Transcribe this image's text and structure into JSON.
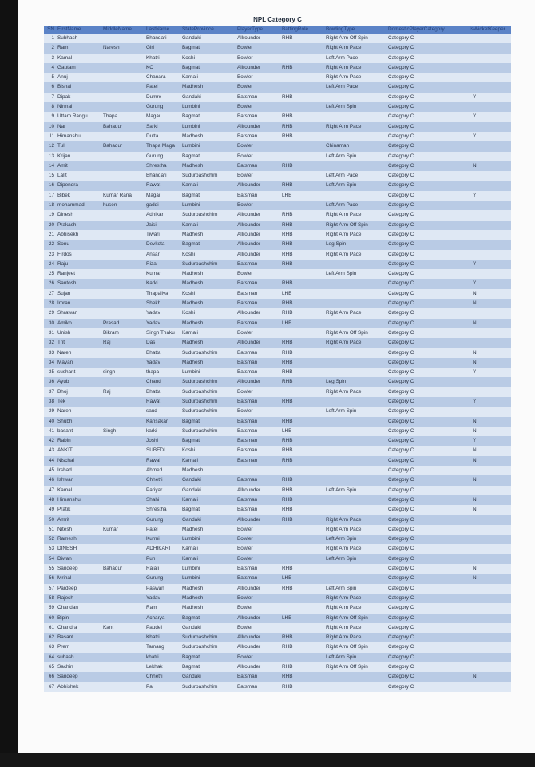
{
  "title": "NPL Category C",
  "table": {
    "headers": [
      "SN",
      "FirstName",
      "MiddleName",
      "LastName",
      "StateProvince",
      "PlayerType",
      "BattingRole",
      "BowlingType",
      "DomesticPlayerCategory",
      "IsWicketKeeper"
    ],
    "rows": [
      [
        "1",
        "Subhash",
        "",
        "Bhandari",
        "Gandaki",
        "Allrounder",
        "RHB",
        "Right Arm Off Spin",
        "Category C",
        ""
      ],
      [
        "2",
        "Ram",
        "Naresh",
        "Giri",
        "Bagmati",
        "Bowler",
        "",
        "Right Arm Pace",
        "Category C",
        ""
      ],
      [
        "3",
        "Kamal",
        "",
        "Khatri",
        "Koshi",
        "Bowler",
        "",
        "Left Arm Pace",
        "Category C",
        ""
      ],
      [
        "4",
        "Gautam",
        "",
        "KC",
        "Bagmati",
        "Allrounder",
        "RHB",
        "Right Arm Pace",
        "Category C",
        ""
      ],
      [
        "5",
        "Anuj",
        "",
        "Chanara",
        "Karnali",
        "Bowler",
        "",
        "Right Arm Pace",
        "Category C",
        ""
      ],
      [
        "6",
        "Bishal",
        "",
        "Patel",
        "Madhesh",
        "Bowler",
        "",
        "Left Arm Pace",
        "Category C",
        ""
      ],
      [
        "7",
        "Dipak",
        "",
        "Dumre",
        "Gandaki",
        "Batsman",
        "RHB",
        "",
        "Category C",
        "Y"
      ],
      [
        "8",
        "Nirmal",
        "",
        "Gurung",
        "Lumbini",
        "Bowler",
        "",
        "Left Arm Spin",
        "Category C",
        ""
      ],
      [
        "9",
        "Uttam Rangu",
        "Thapa",
        "Magar",
        "Bagmati",
        "Batsman",
        "RHB",
        "",
        "Category C",
        "Y"
      ],
      [
        "10",
        "Nar",
        "Bahadur",
        "Sarki",
        "Lumbini",
        "Allrounder",
        "RHB",
        "Right Arm Pace",
        "Category C",
        ""
      ],
      [
        "11",
        "Himanshu",
        "",
        "Dutta",
        "Madhesh",
        "Batsman",
        "RHB",
        "",
        "Category C",
        "Y"
      ],
      [
        "12",
        "Tul",
        "Bahadur",
        "Thapa Maga",
        "Lumbini",
        "Bowler",
        "",
        "Chinaman",
        "Category C",
        ""
      ],
      [
        "13",
        "Krijan",
        "",
        "Gurung",
        "Bagmati",
        "Bowler",
        "",
        "Left Arm Spin",
        "Category C",
        ""
      ],
      [
        "14",
        "Amit",
        "",
        "Shrestha",
        "Madhesh",
        "Batsman",
        "RHB",
        "",
        "Category C",
        "N"
      ],
      [
        "15",
        "Lalit",
        "",
        "Bhandari",
        "Sudurpashchim",
        "Bowler",
        "",
        "Left Arm Pace",
        "Category C",
        ""
      ],
      [
        "16",
        "Dipendra",
        "",
        "Rawat",
        "Karnali",
        "Allrounder",
        "RHB",
        "Left Arm Spin",
        "Category C",
        ""
      ],
      [
        "17",
        "Bibek",
        "Kumar Rana",
        "Magar",
        "Bagmati",
        "Batsman",
        "LHB",
        "",
        "Category C",
        "Y"
      ],
      [
        "18",
        "mohammad",
        "husen",
        "gaddi",
        "Lumbini",
        "Bowler",
        "",
        "Left Arm Pace",
        "Category C",
        ""
      ],
      [
        "19",
        "Dinesh",
        "",
        "Adhikari",
        "Sudurpashchim",
        "Allrounder",
        "RHB",
        "Right Arm Pace",
        "Category C",
        ""
      ],
      [
        "20",
        "Prakash",
        "",
        "Jaisi",
        "Karnali",
        "Allrounder",
        "RHB",
        "Right Arm Off Spin",
        "Category C",
        ""
      ],
      [
        "21",
        "Abhisekh",
        "",
        "Tiwari",
        "Madhesh",
        "Allrounder",
        "RHB",
        "Right Arm Pace",
        "Category C",
        ""
      ],
      [
        "22",
        "Sonu",
        "",
        "Devkota",
        "Bagmati",
        "Allrounder",
        "RHB",
        "Leg Spin",
        "Category C",
        ""
      ],
      [
        "23",
        "Firdos",
        "",
        "Ansari",
        "Koshi",
        "Allrounder",
        "RHB",
        "Right Arm Pace",
        "Category C",
        ""
      ],
      [
        "24",
        "Raju",
        "",
        "Rizal",
        "Sudurpashchim",
        "Batsman",
        "RHB",
        "",
        "Category C",
        "Y"
      ],
      [
        "25",
        "Ranjeet",
        "",
        "Kumar",
        "Madhesh",
        "Bowler",
        "",
        "Left Arm Spin",
        "Category C",
        ""
      ],
      [
        "26",
        "Santosh",
        "",
        "Karki",
        "Madhesh",
        "Batsman",
        "RHB",
        "",
        "Category C",
        "Y"
      ],
      [
        "27",
        "Sujan",
        "",
        "Thapaliya",
        "Koshi",
        "Batsman",
        "LHB",
        "",
        "Category C",
        "N"
      ],
      [
        "28",
        "Imran",
        "",
        "Shekh",
        "Madhesh",
        "Batsman",
        "RHB",
        "",
        "Category C",
        "N"
      ],
      [
        "29",
        "Shrawan",
        "",
        "Yadav",
        "Koshi",
        "Allrounder",
        "RHB",
        "Right Arm Pace",
        "Category C",
        ""
      ],
      [
        "30",
        "Amiko",
        "Prasad",
        "Yadav",
        "Madhesh",
        "Batsman",
        "LHB",
        "",
        "Category C",
        "N"
      ],
      [
        "31",
        "Unish",
        "Bikram",
        "Singh Thaku",
        "Karnali",
        "Bowler",
        "",
        "Right Arm Off Spin",
        "Category C",
        ""
      ],
      [
        "32",
        "Trit",
        "Raj",
        "Das",
        "Madhesh",
        "Allrounder",
        "RHB",
        "Right Arm Pace",
        "Category C",
        ""
      ],
      [
        "33",
        "Naren",
        "",
        "Bhatta",
        "Sudurpashchim",
        "Batsman",
        "RHB",
        "",
        "Category C",
        "N"
      ],
      [
        "34",
        "Mayan",
        "",
        "Yadav",
        "Madhesh",
        "Batsman",
        "RHB",
        "",
        "Category C",
        "N"
      ],
      [
        "35",
        "sushant",
        "singh",
        "thapa",
        "Lumbini",
        "Batsman",
        "RHB",
        "",
        "Category C",
        "Y"
      ],
      [
        "36",
        "Ayub",
        "",
        "Chand",
        "Sudurpashchim",
        "Allrounder",
        "RHB",
        "Leg Spin",
        "Category C",
        ""
      ],
      [
        "37",
        "Bhoj",
        "Raj",
        "Bhatta",
        "Sudurpashchim",
        "Bowler",
        "",
        "Right Arm Pace",
        "Category C",
        ""
      ],
      [
        "38",
        "Tek",
        "",
        "Rawat",
        "Sudurpashchim",
        "Batsman",
        "RHB",
        "",
        "Category C",
        "Y"
      ],
      [
        "39",
        "Naren",
        "",
        "saud",
        "Sudurpashchim",
        "Bowler",
        "",
        "Left Arm Spin",
        "Category C",
        ""
      ],
      [
        "40",
        "Shubh",
        "",
        "Kansakar",
        "Bagmati",
        "Batsman",
        "RHB",
        "",
        "Category C",
        "N"
      ],
      [
        "41",
        "basant",
        "Singh",
        "karki",
        "Sudurpashchim",
        "Batsman",
        "LHB",
        "",
        "Category C",
        "N"
      ],
      [
        "42",
        "Rabin",
        "",
        "Joshi",
        "Bagmati",
        "Batsman",
        "RHB",
        "",
        "Category C",
        "Y"
      ],
      [
        "43",
        "ANKIT",
        "",
        "SUBEDI",
        "Koshi",
        "Batsman",
        "RHB",
        "",
        "Category C",
        "N"
      ],
      [
        "44",
        "Nischal",
        "",
        "Rawal",
        "Karnali",
        "Batsman",
        "RHB",
        "",
        "Category C",
        "N"
      ],
      [
        "45",
        "Irshad",
        "",
        "Ahmed",
        "Madhesh",
        "",
        "",
        "",
        "Category C",
        ""
      ],
      [
        "46",
        "Ishwar",
        "",
        "Chhetri",
        "Gandaki",
        "Batsman",
        "RHB",
        "",
        "Category C",
        "N"
      ],
      [
        "47",
        "Kamal",
        "",
        "Pariyar",
        "Gandaki",
        "Allrounder",
        "RHB",
        "Left Arm Spin",
        "Category C",
        ""
      ],
      [
        "48",
        "Himanshu",
        "",
        "Shahi",
        "Karnali",
        "Batsman",
        "RHB",
        "",
        "Category C",
        "N"
      ],
      [
        "49",
        "Pratik",
        "",
        "Shrestha",
        "Bagmati",
        "Batsman",
        "RHB",
        "",
        "Category C",
        "N"
      ],
      [
        "50",
        "Amrit",
        "",
        "Gurung",
        "Gandaki",
        "Allrounder",
        "RHB",
        "Right Arm Pace",
        "Category C",
        ""
      ],
      [
        "51",
        "Nitesh",
        "Kumar",
        "Patel",
        "Madhesh",
        "Bowler",
        "",
        "Right Arm Pace",
        "Category C",
        ""
      ],
      [
        "52",
        "Ramesh",
        "",
        "Kurmi",
        "Lumbini",
        "Bowler",
        "",
        "Left Arm Spin",
        "Category C",
        ""
      ],
      [
        "53",
        "DINESH",
        "",
        "ADHIKARI",
        "Karnali",
        "Bowler",
        "",
        "Right Arm Pace",
        "Category C",
        ""
      ],
      [
        "54",
        "Diwan",
        "",
        "Pun",
        "Karnali",
        "Bowler",
        "",
        "Left Arm Spin",
        "Category C",
        ""
      ],
      [
        "55",
        "Sandeep",
        "Bahadur",
        "Rajali",
        "Lumbini",
        "Batsman",
        "RHB",
        "",
        "Category C",
        "N"
      ],
      [
        "56",
        "Mrinal",
        "",
        "Gurung",
        "Lumbini",
        "Batsman",
        "LHB",
        "",
        "Category C",
        "N"
      ],
      [
        "57",
        "Pardeep",
        "",
        "Paswan",
        "Madhesh",
        "Allrounder",
        "RHB",
        "Left Arm Spin",
        "Category C",
        ""
      ],
      [
        "58",
        "Rajesh",
        "",
        "Yadav",
        "Madhesh",
        "Bowler",
        "",
        "Right Arm Pace",
        "Category C",
        ""
      ],
      [
        "59",
        "Chandan",
        "",
        "Ram",
        "Madhesh",
        "Bowler",
        "",
        "Right Arm Pace",
        "Category C",
        ""
      ],
      [
        "60",
        "Bipin",
        "",
        "Acharya",
        "Bagmati",
        "Allrounder",
        "LHB",
        "Right Arm Off Spin",
        "Category C",
        ""
      ],
      [
        "61",
        "Chandra",
        "Kant",
        "Paudel",
        "Gandaki",
        "Bowler",
        "",
        "Right Arm Pace",
        "Category C",
        ""
      ],
      [
        "62",
        "Basant",
        "",
        "Khatri",
        "Sudurpashchim",
        "Allrounder",
        "RHB",
        "Right Arm Pace",
        "Category C",
        ""
      ],
      [
        "63",
        "Prem",
        "",
        "Tamang",
        "Sudurpashchim",
        "Allrounder",
        "RHB",
        "Right Arm Off Spin",
        "Category C",
        ""
      ],
      [
        "64",
        "subash",
        "",
        "khatri",
        "Bagmati",
        "Bowler",
        "",
        "Left Arm Spin",
        "Category C",
        ""
      ],
      [
        "65",
        "Sachin",
        "",
        "Lekhak",
        "Bagmati",
        "Allrounder",
        "RHB",
        "Right Arm Off Spin",
        "Category C",
        ""
      ],
      [
        "66",
        "Sandeep",
        "",
        "Chhetri",
        "Gandaki",
        "Batsman",
        "RHB",
        "",
        "Category C",
        "N"
      ],
      [
        "67",
        "Abhishek",
        "",
        "Pal",
        "Sudurpashchim",
        "Batsman",
        "RHB",
        "",
        "Category C",
        ""
      ]
    ]
  },
  "colors": {
    "header": "#5b83c7",
    "row_light": "#dfe8f4",
    "row_dark": "#b9cbe5"
  }
}
